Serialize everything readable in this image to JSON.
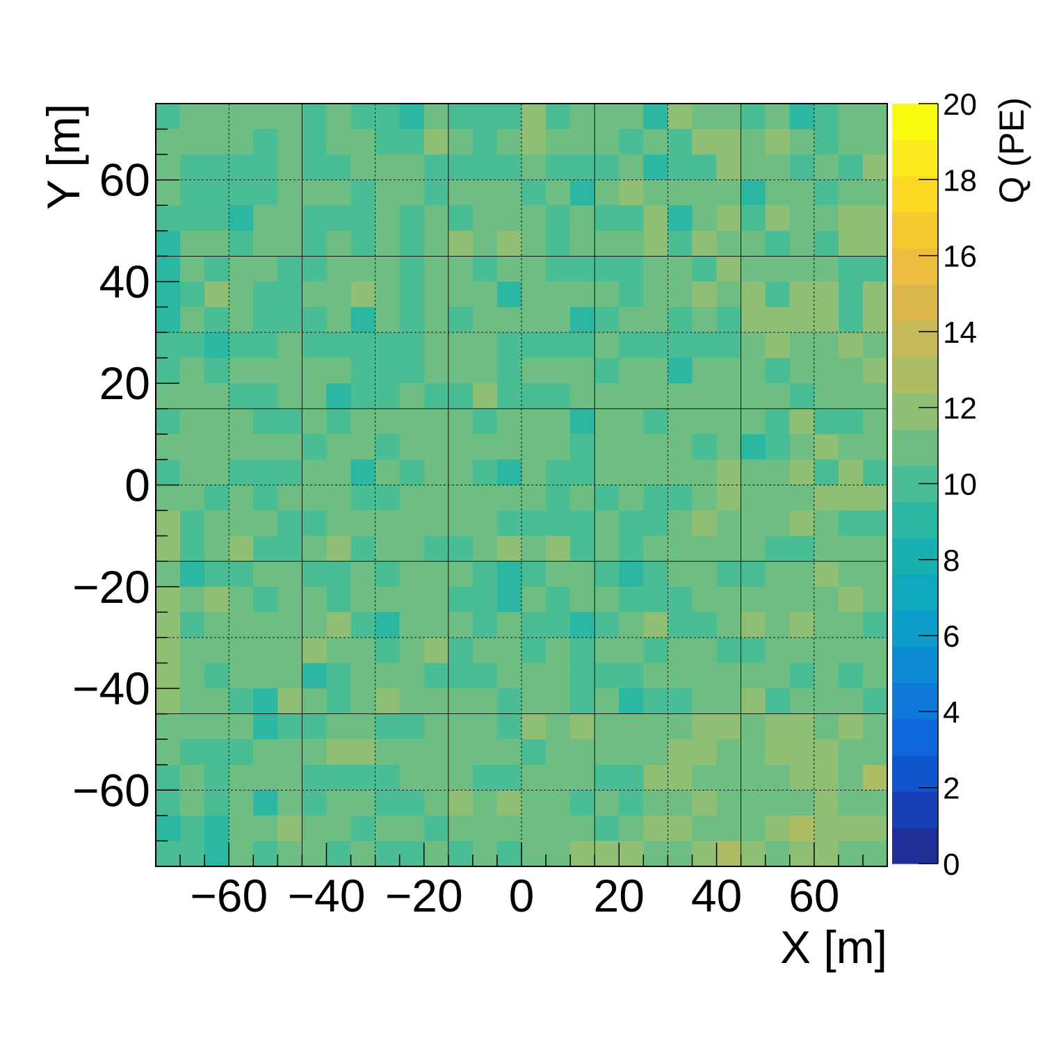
{
  "chart_data": {
    "type": "heatmap",
    "title": "",
    "xlabel": "X [m]",
    "ylabel": "Y [m]",
    "zlabel": "Q (PE)",
    "xlim": [
      -75,
      75
    ],
    "ylim": [
      -75,
      75
    ],
    "zlim": [
      0,
      20
    ],
    "x_ticks": [
      -60,
      -40,
      -20,
      0,
      20,
      40,
      60
    ],
    "x_tick_labels": [
      "−60",
      "−40",
      "−20",
      "0",
      "20",
      "40",
      "60"
    ],
    "y_ticks": [
      -60,
      -40,
      -20,
      0,
      20,
      40,
      60
    ],
    "y_tick_labels": [
      "−60",
      "−40",
      "−20",
      "0",
      "20",
      "40",
      "60"
    ],
    "z_ticks": [
      0,
      2,
      4,
      6,
      8,
      10,
      12,
      14,
      16,
      18,
      20
    ],
    "z_tick_labels": [
      "0",
      "2",
      "4",
      "6",
      "8",
      "10",
      "12",
      "14",
      "16",
      "18",
      "20"
    ],
    "bin_edges": [
      -75,
      -70,
      -65,
      -60,
      -55,
      -50,
      -45,
      -40,
      -35,
      -30,
      -25,
      -20,
      -15,
      -10,
      -5,
      0,
      5,
      10,
      15,
      20,
      25,
      30,
      35,
      40,
      45,
      50,
      55,
      60,
      65,
      70,
      75
    ],
    "grid": true,
    "grid_x": [
      -60,
      -45,
      -30,
      -15,
      0,
      15,
      30,
      45,
      60
    ],
    "grid_y": [
      60,
      45,
      30,
      15,
      0,
      -15,
      -30,
      -45,
      -60
    ],
    "colorbar": "right",
    "palette": [
      "#1f2f9a",
      "#183fb6",
      "#1256cf",
      "#0f67dc",
      "#0e79d9",
      "#0d8bd2",
      "#0c9dc9",
      "#0fa8bd",
      "#19b1b0",
      "#2bb7a2",
      "#4bbd94",
      "#6ebe84",
      "#8fbf74",
      "#acbd66",
      "#c6b95a",
      "#dcb84c",
      "#ecbd3e",
      "#f7c930",
      "#fbd925",
      "#fceb1c",
      "#f9fb0e"
    ],
    "z_rows_top_to_bottom": [
      [
        10,
        11,
        11,
        11,
        11,
        11,
        10,
        11,
        10,
        10,
        9,
        11,
        10,
        10,
        10,
        12,
        10,
        11,
        11,
        11,
        9,
        12,
        11,
        11,
        10,
        11,
        9,
        10,
        11,
        11
      ],
      [
        11,
        11,
        11,
        11,
        10,
        11,
        10,
        11,
        11,
        10,
        10,
        12,
        11,
        10,
        11,
        12,
        11,
        11,
        11,
        10,
        11,
        10,
        12,
        12,
        11,
        12,
        11,
        10,
        11,
        11
      ],
      [
        11,
        10,
        10,
        10,
        10,
        11,
        10,
        10,
        11,
        11,
        11,
        10,
        10,
        10,
        10,
        11,
        10,
        10,
        10,
        11,
        9,
        10,
        10,
        12,
        11,
        11,
        10,
        11,
        10,
        12
      ],
      [
        11,
        10,
        10,
        10,
        10,
        11,
        11,
        11,
        10,
        11,
        11,
        10,
        11,
        11,
        11,
        10,
        11,
        9,
        11,
        12,
        11,
        11,
        11,
        11,
        9,
        11,
        11,
        10,
        11,
        11
      ],
      [
        10,
        10,
        10,
        9,
        11,
        11,
        10,
        10,
        10,
        11,
        10,
        11,
        10,
        11,
        11,
        11,
        10,
        11,
        10,
        10,
        12,
        9,
        11,
        12,
        10,
        12,
        11,
        11,
        12,
        12
      ],
      [
        9,
        11,
        11,
        10,
        11,
        11,
        10,
        11,
        10,
        11,
        10,
        11,
        12,
        11,
        12,
        11,
        10,
        11,
        11,
        11,
        12,
        10,
        12,
        11,
        11,
        10,
        11,
        10,
        12,
        12
      ],
      [
        9,
        11,
        10,
        11,
        11,
        10,
        10,
        11,
        11,
        11,
        10,
        11,
        11,
        10,
        11,
        11,
        10,
        10,
        10,
        10,
        11,
        11,
        10,
        12,
        11,
        11,
        11,
        11,
        10,
        10
      ],
      [
        9,
        10,
        12,
        11,
        10,
        10,
        11,
        11,
        12,
        11,
        10,
        11,
        11,
        11,
        9,
        11,
        11,
        11,
        11,
        10,
        11,
        11,
        12,
        11,
        12,
        10,
        12,
        12,
        10,
        12
      ],
      [
        9,
        11,
        10,
        11,
        10,
        10,
        10,
        11,
        9,
        11,
        10,
        11,
        10,
        11,
        11,
        11,
        11,
        9,
        10,
        11,
        11,
        10,
        11,
        10,
        12,
        12,
        12,
        12,
        10,
        12
      ],
      [
        10,
        10,
        9,
        10,
        10,
        11,
        10,
        10,
        10,
        10,
        10,
        11,
        11,
        11,
        10,
        10,
        10,
        10,
        11,
        10,
        10,
        10,
        10,
        10,
        11,
        12,
        11,
        11,
        12,
        11
      ],
      [
        10,
        11,
        10,
        11,
        11,
        11,
        11,
        11,
        10,
        10,
        10,
        11,
        11,
        11,
        10,
        11,
        11,
        11,
        10,
        11,
        11,
        9,
        11,
        11,
        11,
        10,
        11,
        11,
        11,
        12
      ],
      [
        11,
        11,
        11,
        10,
        10,
        11,
        11,
        9,
        10,
        10,
        11,
        10,
        10,
        12,
        10,
        10,
        10,
        11,
        11,
        11,
        11,
        11,
        11,
        11,
        11,
        11,
        10,
        11,
        11,
        11
      ],
      [
        10,
        11,
        11,
        11,
        10,
        10,
        11,
        10,
        11,
        11,
        11,
        11,
        11,
        10,
        11,
        11,
        11,
        9,
        11,
        11,
        10,
        11,
        11,
        11,
        11,
        10,
        12,
        10,
        10,
        11
      ],
      [
        11,
        11,
        11,
        11,
        11,
        11,
        10,
        11,
        11,
        10,
        11,
        11,
        11,
        11,
        11,
        11,
        11,
        10,
        11,
        11,
        11,
        11,
        10,
        11,
        9,
        10,
        11,
        12,
        11,
        11
      ],
      [
        10,
        11,
        11,
        10,
        10,
        10,
        11,
        11,
        9,
        11,
        10,
        11,
        11,
        10,
        9,
        11,
        10,
        10,
        11,
        11,
        11,
        11,
        11,
        12,
        11,
        11,
        12,
        10,
        12,
        10
      ],
      [
        11,
        11,
        10,
        11,
        10,
        11,
        11,
        11,
        10,
        10,
        11,
        11,
        11,
        11,
        11,
        11,
        10,
        11,
        10,
        11,
        10,
        10,
        11,
        12,
        11,
        11,
        11,
        12,
        12,
        12
      ],
      [
        12,
        10,
        11,
        11,
        11,
        10,
        10,
        11,
        11,
        11,
        11,
        11,
        11,
        11,
        10,
        10,
        10,
        10,
        11,
        10,
        10,
        11,
        12,
        11,
        11,
        11,
        12,
        11,
        10,
        10
      ],
      [
        12,
        10,
        11,
        12,
        10,
        10,
        11,
        12,
        10,
        11,
        11,
        10,
        10,
        11,
        12,
        11,
        12,
        10,
        11,
        10,
        11,
        11,
        11,
        11,
        11,
        10,
        10,
        11,
        11,
        11
      ],
      [
        11,
        9,
        10,
        10,
        11,
        11,
        10,
        10,
        11,
        10,
        11,
        11,
        11,
        10,
        9,
        10,
        11,
        11,
        10,
        9,
        10,
        11,
        11,
        10,
        10,
        11,
        11,
        12,
        11,
        11
      ],
      [
        12,
        11,
        12,
        11,
        10,
        11,
        11,
        10,
        11,
        11,
        11,
        11,
        10,
        10,
        9,
        11,
        10,
        11,
        11,
        10,
        10,
        10,
        11,
        11,
        11,
        11,
        11,
        11,
        12,
        11
      ],
      [
        12,
        10,
        11,
        11,
        11,
        11,
        11,
        12,
        10,
        9,
        11,
        11,
        11,
        10,
        11,
        10,
        10,
        9,
        10,
        11,
        12,
        10,
        10,
        11,
        12,
        11,
        12,
        11,
        11,
        10
      ],
      [
        12,
        11,
        11,
        11,
        11,
        11,
        12,
        11,
        11,
        10,
        11,
        12,
        10,
        11,
        11,
        10,
        11,
        10,
        11,
        11,
        10,
        11,
        11,
        10,
        10,
        11,
        11,
        11,
        11,
        11
      ],
      [
        12,
        11,
        10,
        11,
        11,
        11,
        9,
        10,
        11,
        11,
        11,
        10,
        10,
        10,
        11,
        11,
        11,
        10,
        10,
        10,
        11,
        11,
        11,
        11,
        11,
        11,
        10,
        11,
        10,
        11
      ],
      [
        12,
        11,
        11,
        10,
        9,
        12,
        11,
        10,
        11,
        12,
        11,
        11,
        11,
        11,
        10,
        11,
        11,
        10,
        11,
        9,
        10,
        10,
        11,
        11,
        12,
        10,
        11,
        11,
        11,
        10
      ],
      [
        11,
        11,
        11,
        11,
        9,
        10,
        10,
        11,
        11,
        10,
        10,
        11,
        11,
        11,
        10,
        12,
        11,
        12,
        11,
        11,
        11,
        11,
        12,
        12,
        11,
        12,
        12,
        11,
        12,
        11
      ],
      [
        11,
        10,
        10,
        10,
        11,
        11,
        11,
        12,
        12,
        11,
        11,
        11,
        11,
        11,
        11,
        10,
        11,
        11,
        11,
        11,
        11,
        12,
        12,
        11,
        11,
        12,
        12,
        12,
        11,
        11
      ],
      [
        10,
        11,
        10,
        11,
        11,
        11,
        10,
        10,
        10,
        10,
        11,
        11,
        11,
        10,
        10,
        11,
        11,
        11,
        10,
        10,
        12,
        12,
        11,
        11,
        11,
        11,
        12,
        12,
        11,
        13
      ],
      [
        10,
        11,
        10,
        11,
        9,
        11,
        10,
        11,
        11,
        10,
        10,
        11,
        12,
        11,
        12,
        11,
        11,
        10,
        11,
        10,
        11,
        11,
        12,
        11,
        11,
        11,
        11,
        12,
        11,
        11
      ],
      [
        9,
        10,
        9,
        11,
        11,
        12,
        11,
        11,
        10,
        11,
        11,
        10,
        11,
        11,
        11,
        11,
        11,
        11,
        10,
        11,
        12,
        12,
        11,
        11,
        11,
        12,
        13,
        12,
        12,
        12
      ],
      [
        10,
        10,
        9,
        11,
        10,
        11,
        11,
        10,
        11,
        10,
        10,
        11,
        10,
        11,
        10,
        11,
        11,
        12,
        12,
        12,
        11,
        11,
        12,
        13,
        12,
        11,
        12,
        12,
        11,
        11
      ]
    ]
  }
}
